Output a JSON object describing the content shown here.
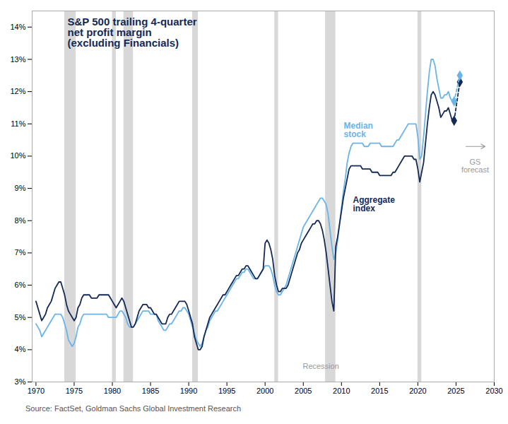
{
  "chart_data": {
    "type": "line",
    "title": "S&P 500 trailing 4-quarter\nnet profit margin\n(excluding Financials)",
    "source": "Source: FactSet, Goldman Sachs Global Investment Research",
    "xlim": [
      1969.5,
      2030
    ],
    "xticks": [
      1970,
      1975,
      1980,
      1985,
      1990,
      1995,
      2000,
      2005,
      2010,
      2015,
      2020,
      2025,
      2030
    ],
    "ylim": [
      0.03,
      0.145
    ],
    "yticks": [
      {
        "value": 0.03,
        "label": "3%"
      },
      {
        "value": 0.04,
        "label": "4%"
      },
      {
        "value": 0.05,
        "label": "5%"
      },
      {
        "value": 0.06,
        "label": "6%"
      },
      {
        "value": 0.07,
        "label": "7%"
      },
      {
        "value": 0.08,
        "label": "8%"
      },
      {
        "value": 0.09,
        "label": "9%"
      },
      {
        "value": 0.1,
        "label": "10%"
      },
      {
        "value": 0.11,
        "label": "11%"
      },
      {
        "value": 0.12,
        "label": "12%"
      },
      {
        "value": 0.13,
        "label": "13%"
      },
      {
        "value": 0.14,
        "label": "14%"
      }
    ],
    "grid": false,
    "x": [
      1970,
      1970.25,
      1970.5,
      1970.75,
      1971,
      1971.25,
      1971.5,
      1971.75,
      1972,
      1972.25,
      1972.5,
      1972.75,
      1973,
      1973.25,
      1973.5,
      1973.75,
      1974,
      1974.25,
      1974.5,
      1974.75,
      1975,
      1975.25,
      1975.5,
      1975.75,
      1976,
      1976.25,
      1976.5,
      1976.75,
      1977,
      1977.25,
      1977.5,
      1977.75,
      1978,
      1978.25,
      1978.5,
      1978.75,
      1979,
      1979.25,
      1979.5,
      1979.75,
      1980,
      1980.25,
      1980.5,
      1980.75,
      1981,
      1981.25,
      1981.5,
      1981.75,
      1982,
      1982.25,
      1982.5,
      1982.75,
      1983,
      1983.25,
      1983.5,
      1983.75,
      1984,
      1984.25,
      1984.5,
      1984.75,
      1985,
      1985.25,
      1985.5,
      1985.75,
      1986,
      1986.25,
      1986.5,
      1986.75,
      1987,
      1987.25,
      1987.5,
      1987.75,
      1988,
      1988.25,
      1988.5,
      1988.75,
      1989,
      1989.25,
      1989.5,
      1989.75,
      1990,
      1990.25,
      1990.5,
      1990.75,
      1991,
      1991.25,
      1991.5,
      1991.75,
      1992,
      1992.25,
      1992.5,
      1992.75,
      1993,
      1993.25,
      1993.5,
      1993.75,
      1994,
      1994.25,
      1994.5,
      1994.75,
      1995,
      1995.25,
      1995.5,
      1995.75,
      1996,
      1996.25,
      1996.5,
      1996.75,
      1997,
      1997.25,
      1997.5,
      1997.75,
      1998,
      1998.25,
      1998.5,
      1998.75,
      1999,
      1999.25,
      1999.5,
      1999.75,
      2000,
      2000.25,
      2000.5,
      2000.75,
      2001,
      2001.25,
      2001.5,
      2001.75,
      2002,
      2002.25,
      2002.5,
      2002.75,
      2003,
      2003.25,
      2003.5,
      2003.75,
      2004,
      2004.25,
      2004.5,
      2004.75,
      2005,
      2005.25,
      2005.5,
      2005.75,
      2006,
      2006.25,
      2006.5,
      2006.75,
      2007,
      2007.25,
      2007.5,
      2007.75,
      2008,
      2008.25,
      2008.5,
      2008.75,
      2009,
      2009.25,
      2009.5,
      2009.75,
      2010,
      2010.25,
      2010.5,
      2010.75,
      2011,
      2011.25,
      2011.5,
      2011.75,
      2012,
      2012.25,
      2012.5,
      2012.75,
      2013,
      2013.25,
      2013.5,
      2013.75,
      2014,
      2014.25,
      2014.5,
      2014.75,
      2015,
      2015.25,
      2015.5,
      2015.75,
      2016,
      2016.25,
      2016.5,
      2016.75,
      2017,
      2017.25,
      2017.5,
      2017.75,
      2018,
      2018.25,
      2018.5,
      2018.75,
      2019,
      2019.25,
      2019.5,
      2019.75,
      2020,
      2020.25,
      2020.5,
      2020.75,
      2021,
      2021.25,
      2021.5,
      2021.75,
      2022,
      2022.25,
      2022.5,
      2022.75,
      2023,
      2023.25,
      2023.5,
      2023.75,
      2024,
      2024.25,
      2024.5,
      2024.75
    ],
    "series": [
      {
        "name": "Median stock",
        "color": "#6ab4e8",
        "line_style": "solid",
        "label_x": 2010.3,
        "label_y": 0.108,
        "values": [
          0.048,
          0.047,
          0.046,
          0.044,
          0.045,
          0.046,
          0.047,
          0.048,
          0.049,
          0.05,
          0.051,
          0.051,
          0.051,
          0.051,
          0.05,
          0.048,
          0.046,
          0.043,
          0.042,
          0.041,
          0.042,
          0.044,
          0.047,
          0.048,
          0.05,
          0.051,
          0.051,
          0.051,
          0.051,
          0.051,
          0.051,
          0.051,
          0.051,
          0.051,
          0.051,
          0.051,
          0.051,
          0.051,
          0.05,
          0.05,
          0.05,
          0.05,
          0.05,
          0.051,
          0.052,
          0.052,
          0.051,
          0.05,
          0.048,
          0.047,
          0.047,
          0.047,
          0.048,
          0.049,
          0.05,
          0.051,
          0.052,
          0.052,
          0.052,
          0.052,
          0.051,
          0.051,
          0.051,
          0.051,
          0.049,
          0.048,
          0.047,
          0.046,
          0.046,
          0.047,
          0.048,
          0.048,
          0.049,
          0.05,
          0.051,
          0.052,
          0.052,
          0.053,
          0.053,
          0.052,
          0.051,
          0.049,
          0.047,
          0.045,
          0.043,
          0.042,
          0.041,
          0.042,
          0.044,
          0.046,
          0.047,
          0.049,
          0.05,
          0.051,
          0.052,
          0.052,
          0.053,
          0.054,
          0.055,
          0.056,
          0.057,
          0.058,
          0.059,
          0.06,
          0.061,
          0.062,
          0.062,
          0.063,
          0.064,
          0.064,
          0.065,
          0.065,
          0.064,
          0.063,
          0.062,
          0.062,
          0.062,
          0.063,
          0.064,
          0.065,
          0.066,
          0.066,
          0.066,
          0.065,
          0.063,
          0.06,
          0.058,
          0.057,
          0.057,
          0.058,
          0.059,
          0.06,
          0.062,
          0.064,
          0.066,
          0.068,
          0.07,
          0.072,
          0.074,
          0.076,
          0.078,
          0.079,
          0.08,
          0.081,
          0.082,
          0.083,
          0.084,
          0.085,
          0.086,
          0.087,
          0.087,
          0.086,
          0.085,
          0.082,
          0.077,
          0.072,
          0.068,
          0.07,
          0.074,
          0.079,
          0.084,
          0.089,
          0.093,
          0.098,
          0.101,
          0.103,
          0.104,
          0.104,
          0.104,
          0.104,
          0.104,
          0.104,
          0.103,
          0.103,
          0.103,
          0.104,
          0.104,
          0.104,
          0.104,
          0.104,
          0.104,
          0.103,
          0.103,
          0.103,
          0.103,
          0.103,
          0.103,
          0.103,
          0.104,
          0.105,
          0.105,
          0.106,
          0.107,
          0.108,
          0.109,
          0.11,
          0.11,
          0.11,
          0.11,
          0.11,
          0.106,
          0.099,
          0.1,
          0.106,
          0.113,
          0.12,
          0.126,
          0.13,
          0.13,
          0.128,
          0.124,
          0.121,
          0.118,
          0.118,
          0.119,
          0.119,
          0.12,
          0.118,
          0.117,
          0.117
        ]
      },
      {
        "name": "Aggregate index",
        "color": "#152955",
        "line_style": "solid",
        "label_x": 2011.5,
        "label_y": 0.085,
        "values": [
          0.055,
          0.053,
          0.051,
          0.049,
          0.05,
          0.051,
          0.053,
          0.054,
          0.055,
          0.057,
          0.059,
          0.06,
          0.061,
          0.061,
          0.059,
          0.057,
          0.054,
          0.052,
          0.051,
          0.05,
          0.049,
          0.05,
          0.053,
          0.054,
          0.056,
          0.057,
          0.057,
          0.057,
          0.057,
          0.056,
          0.056,
          0.056,
          0.056,
          0.057,
          0.057,
          0.057,
          0.057,
          0.057,
          0.057,
          0.056,
          0.055,
          0.054,
          0.053,
          0.054,
          0.055,
          0.056,
          0.055,
          0.053,
          0.051,
          0.049,
          0.047,
          0.047,
          0.048,
          0.05,
          0.052,
          0.053,
          0.054,
          0.054,
          0.054,
          0.053,
          0.053,
          0.052,
          0.051,
          0.051,
          0.05,
          0.049,
          0.048,
          0.048,
          0.048,
          0.05,
          0.051,
          0.051,
          0.052,
          0.053,
          0.054,
          0.055,
          0.055,
          0.055,
          0.055,
          0.054,
          0.052,
          0.05,
          0.048,
          0.044,
          0.042,
          0.04,
          0.04,
          0.041,
          0.044,
          0.046,
          0.048,
          0.05,
          0.051,
          0.052,
          0.053,
          0.054,
          0.055,
          0.056,
          0.057,
          0.057,
          0.058,
          0.059,
          0.06,
          0.061,
          0.062,
          0.063,
          0.063,
          0.064,
          0.065,
          0.065,
          0.066,
          0.066,
          0.065,
          0.064,
          0.063,
          0.062,
          0.062,
          0.063,
          0.064,
          0.065,
          0.073,
          0.074,
          0.073,
          0.071,
          0.068,
          0.063,
          0.06,
          0.058,
          0.058,
          0.059,
          0.059,
          0.059,
          0.06,
          0.062,
          0.064,
          0.066,
          0.068,
          0.07,
          0.071,
          0.073,
          0.074,
          0.075,
          0.076,
          0.077,
          0.078,
          0.079,
          0.079,
          0.08,
          0.08,
          0.079,
          0.077,
          0.074,
          0.07,
          0.065,
          0.06,
          0.055,
          0.052,
          0.072,
          0.075,
          0.079,
          0.083,
          0.087,
          0.09,
          0.093,
          0.096,
          0.097,
          0.097,
          0.097,
          0.097,
          0.097,
          0.097,
          0.096,
          0.096,
          0.096,
          0.096,
          0.096,
          0.095,
          0.095,
          0.095,
          0.095,
          0.094,
          0.094,
          0.094,
          0.094,
          0.094,
          0.094,
          0.094,
          0.095,
          0.095,
          0.096,
          0.097,
          0.098,
          0.099,
          0.1,
          0.1,
          0.1,
          0.1,
          0.1,
          0.099,
          0.099,
          0.096,
          0.092,
          0.095,
          0.098,
          0.104,
          0.11,
          0.115,
          0.119,
          0.12,
          0.119,
          0.117,
          0.115,
          0.112,
          0.113,
          0.114,
          0.114,
          0.115,
          0.113,
          0.111,
          0.111
        ]
      },
      {
        "color": "#152955",
        "line_style": "dashed",
        "marker": "diamond",
        "x": [
          2024.75,
          2025.5
        ],
        "values": [
          0.111,
          0.123
        ]
      },
      {
        "color": "#6ab4e8",
        "line_style": "dashed",
        "marker": "diamond",
        "x": [
          2024.75,
          2025.5
        ],
        "values": [
          0.117,
          0.125
        ]
      }
    ],
    "recessions": {
      "label": "Recession",
      "label_x": 2007.3,
      "label_y": 0.034,
      "color": "#d8d8d8",
      "periods": [
        [
          1973.75,
          1975.25
        ],
        [
          1980.0,
          1980.5
        ],
        [
          1981.5,
          1982.75
        ],
        [
          1990.5,
          1991.25
        ],
        [
          2001.25,
          2001.75
        ],
        [
          2007.9,
          2009.25
        ],
        [
          2020.0,
          2020.5
        ]
      ]
    },
    "annotations": [
      {
        "text": "GS forecast",
        "x": 2027.5,
        "y": 0.099,
        "arrow_x1": 2026.3,
        "arrow_x2": 2028.8,
        "arrow_y": 0.103
      }
    ]
  }
}
